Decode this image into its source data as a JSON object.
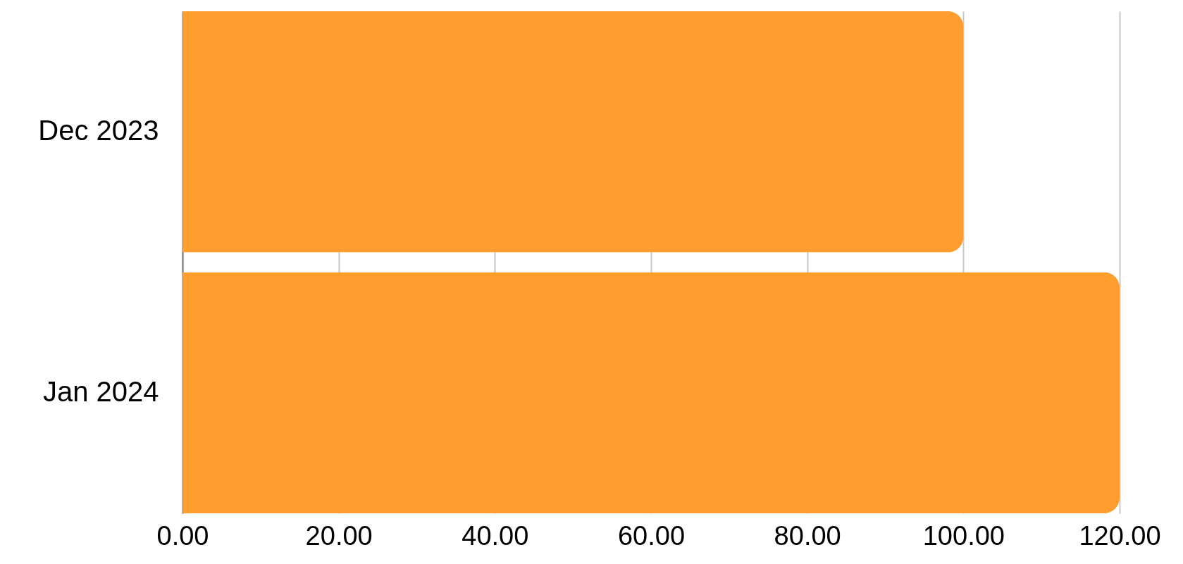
{
  "chart_data": {
    "type": "bar",
    "orientation": "horizontal",
    "categories": [
      "Dec 2023",
      "Jan 2024"
    ],
    "values": [
      100,
      120
    ],
    "color": "#ff9e2f",
    "xlim": [
      0,
      120
    ],
    "xticks": [
      {
        "value": 0,
        "label": "0.00"
      },
      {
        "value": 20,
        "label": "20.00"
      },
      {
        "value": 40,
        "label": "40.00"
      },
      {
        "value": 60,
        "label": "60.00"
      },
      {
        "value": 80,
        "label": "80.00"
      },
      {
        "value": 100,
        "label": "100.00"
      },
      {
        "value": 120,
        "label": "120.00"
      }
    ],
    "grid": true
  }
}
